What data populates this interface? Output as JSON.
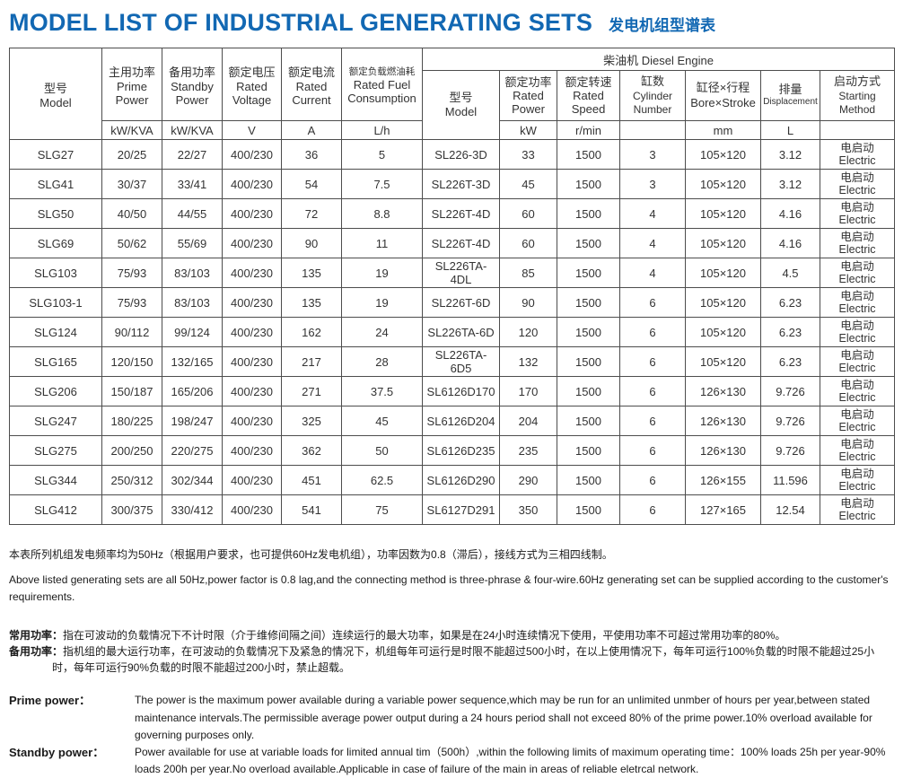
{
  "page": {
    "title_en": "MODEL LIST OF INDUSTRIAL GENERATING SETS",
    "title_zh": "发电机组型谱表",
    "accent_color": "#1268b3"
  },
  "table": {
    "engine_group_header": "柴油机 Diesel Engine",
    "columns": [
      {
        "zh": "型号",
        "en": "Model",
        "unit": ""
      },
      {
        "zh": "主用功率",
        "en": "Prime Power",
        "unit": "kW/KVA"
      },
      {
        "zh": "备用功率",
        "en": "Standby Power",
        "unit": "kW/KVA"
      },
      {
        "zh": "额定电压",
        "en": "Rated Voltage",
        "unit": "V"
      },
      {
        "zh": "额定电流",
        "en": "Rated Current",
        "unit": "A"
      },
      {
        "zh": "额定负载燃油耗",
        "en": "Rated Fuel Consumption",
        "unit": "L/h"
      },
      {
        "zh": "型号",
        "en": "Model",
        "unit": ""
      },
      {
        "zh": "额定功率",
        "en": "Rated Power",
        "unit": "kW"
      },
      {
        "zh": "额定转速",
        "en": "Rated Speed",
        "unit": "r/min"
      },
      {
        "zh": "缸数",
        "en": "Cylinder Number",
        "unit": ""
      },
      {
        "zh": "缸径×行程",
        "en": "Bore×Stroke",
        "unit": "mm"
      },
      {
        "zh": "排量",
        "en": "Displacement",
        "unit": "L"
      },
      {
        "zh": "启动方式",
        "en": "Starting Method",
        "unit": ""
      }
    ],
    "rows": [
      [
        "SLG27",
        "20/25",
        "22/27",
        "400/230",
        "36",
        "5",
        "SL226-3D",
        "33",
        "1500",
        "3",
        "105×120",
        "3.12",
        "电启动\nElectric"
      ],
      [
        "SLG41",
        "30/37",
        "33/41",
        "400/230",
        "54",
        "7.5",
        "SL226T-3D",
        "45",
        "1500",
        "3",
        "105×120",
        "3.12",
        "电启动\nElectric"
      ],
      [
        "SLG50",
        "40/50",
        "44/55",
        "400/230",
        "72",
        "8.8",
        "SL226T-4D",
        "60",
        "1500",
        "4",
        "105×120",
        "4.16",
        "电启动\nElectric"
      ],
      [
        "SLG69",
        "50/62",
        "55/69",
        "400/230",
        "90",
        "11",
        "SL226T-4D",
        "60",
        "1500",
        "4",
        "105×120",
        "4.16",
        "电启动\nElectric"
      ],
      [
        "SLG103",
        "75/93",
        "83/103",
        "400/230",
        "135",
        "19",
        "SL226TA-4DL",
        "85",
        "1500",
        "4",
        "105×120",
        "4.5",
        "电启动\nElectric"
      ],
      [
        "SLG103-1",
        "75/93",
        "83/103",
        "400/230",
        "135",
        "19",
        "SL226T-6D",
        "90",
        "1500",
        "6",
        "105×120",
        "6.23",
        "电启动\nElectric"
      ],
      [
        "SLG124",
        "90/112",
        "99/124",
        "400/230",
        "162",
        "24",
        "SL226TA-6D",
        "120",
        "1500",
        "6",
        "105×120",
        "6.23",
        "电启动\nElectric"
      ],
      [
        "SLG165",
        "120/150",
        "132/165",
        "400/230",
        "217",
        "28",
        "SL226TA-6D5",
        "132",
        "1500",
        "6",
        "105×120",
        "6.23",
        "电启动\nElectric"
      ],
      [
        "SLG206",
        "150/187",
        "165/206",
        "400/230",
        "271",
        "37.5",
        "SL6126D170",
        "170",
        "1500",
        "6",
        "126×130",
        "9.726",
        "电启动\nElectric"
      ],
      [
        "SLG247",
        "180/225",
        "198/247",
        "400/230",
        "325",
        "45",
        "SL6126D204",
        "204",
        "1500",
        "6",
        "126×130",
        "9.726",
        "电启动\nElectric"
      ],
      [
        "SLG275",
        "200/250",
        "220/275",
        "400/230",
        "362",
        "50",
        "SL6126D235",
        "235",
        "1500",
        "6",
        "126×130",
        "9.726",
        "电启动\nElectric"
      ],
      [
        "SLG344",
        "250/312",
        "302/344",
        "400/230",
        "451",
        "62.5",
        "SL6126D290",
        "290",
        "1500",
        "6",
        "126×155",
        "11.596",
        "电启动\nElectric"
      ],
      [
        "SLG412",
        "300/375",
        "330/412",
        "400/230",
        "541",
        "75",
        "SL6127D291",
        "350",
        "1500",
        "6",
        "127×165",
        "12.54",
        "电启动\nElectric"
      ]
    ]
  },
  "notes": {
    "general_zh": "本表所列机组发电频率均为50Hz（根据用户要求，也可提供60Hz发电机组），功率因数为0.8（滞后），接线方式为三相四线制。",
    "general_en": "Above listed generating sets are all 50Hz,power factor is 0.8 lag,and the connecting method is three-phrase & four-wire.60Hz generating set can be supplied according to the customer's requirements.",
    "prime_zh_label": "常用功率：",
    "prime_zh_text": "指在可波动的负载情况下不计时限（介于维修间隔之间）连续运行的最大功率，如果是在24小时连续情况下使用，平使用功率不可超过常用功率的80%。",
    "standby_zh_label": "备用功率：",
    "standby_zh_text": "指机组的最大运行功率，在可波动的负载情况下及紧急的情况下，机组每年可运行是时限不能超过500小时，在以上使用情况下，每年可运行100%负载的时限不能超过25小时，每年可运行90%负载的时限不能超过200小时，禁止超载。",
    "prime_en_label": "Prime power：",
    "prime_en_text": "The power is the maximum power available during a variable power sequence,which may be run for an unlimited unmber of hours per year,between stated maintenance intervals.The permissible average power output during a 24 hours period shall not exceed 80% of the prime power.10% overload available for governing purposes only.",
    "standby_en_label": "Standby power：",
    "standby_en_text": "Power available for use at variable loads for limited annual tim（500h）,within the following limits of maximum operating time：100% loads 25h per year-90% loads 200h per year.No overload available.Applicable in case of failure of the main in areas of reliable eletrcal network."
  }
}
